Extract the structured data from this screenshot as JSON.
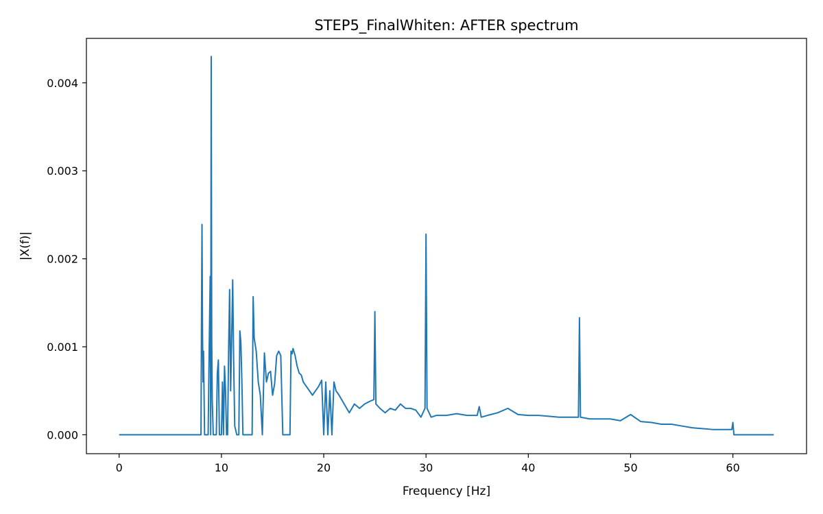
{
  "chart_data": {
    "type": "line",
    "title": "STEP5_FinalWhiten: AFTER spectrum",
    "xlabel": "Frequency [Hz]",
    "ylabel": "|X(f)|",
    "xlim": [
      -3.2,
      67.2
    ],
    "ylim": [
      -0.000215,
      0.004505
    ],
    "xticks": [
      0,
      10,
      20,
      30,
      40,
      50,
      60
    ],
    "xtick_labels": [
      "0",
      "10",
      "20",
      "30",
      "40",
      "50",
      "60"
    ],
    "yticks": [
      0.0,
      0.001,
      0.002,
      0.003,
      0.004
    ],
    "ytick_labels": [
      "0.000",
      "0.001",
      "0.002",
      "0.003",
      "0.004"
    ],
    "grid": false,
    "line_color": "#1f77b4",
    "series": [
      {
        "x": [
          0,
          8.0,
          8.05,
          8.1,
          8.15,
          8.2,
          8.25,
          8.35,
          8.45,
          8.7,
          8.8,
          8.9,
          8.95,
          9.0,
          9.05,
          9.1,
          9.2,
          9.5,
          9.6,
          9.7,
          9.8,
          9.9,
          10.0,
          10.1,
          10.2,
          10.3,
          10.4,
          10.5,
          10.6,
          10.7,
          10.8,
          10.9,
          11.0,
          11.1,
          11.2,
          11.3,
          11.5,
          11.7,
          11.8,
          11.9,
          12.0,
          12.1,
          12.2,
          12.5,
          13.0,
          13.1,
          13.2,
          13.4,
          13.6,
          13.8,
          14.0,
          14.2,
          14.4,
          14.6,
          14.8,
          15.0,
          15.2,
          15.4,
          15.6,
          15.8,
          16.0,
          16.3,
          16.7,
          16.8,
          16.9,
          17.0,
          17.2,
          17.4,
          17.6,
          17.8,
          18.0,
          18.3,
          18.6,
          18.9,
          19.2,
          19.5,
          19.8,
          20.0,
          20.2,
          20.4,
          20.6,
          20.8,
          21.0,
          21.2,
          21.5,
          22.0,
          22.5,
          23.0,
          23.5,
          24.0,
          24.5,
          24.9,
          25.0,
          25.1,
          25.5,
          26.0,
          26.5,
          27.0,
          27.5,
          28.0,
          28.5,
          29.0,
          29.5,
          29.9,
          30.0,
          30.1,
          30.5,
          31.0,
          32.0,
          33.0,
          34.0,
          35.0,
          35.2,
          35.4,
          36.0,
          37.0,
          38.0,
          39.0,
          40.0,
          41.0,
          42.0,
          43.0,
          44.0,
          44.9,
          45.0,
          45.1,
          46.0,
          47.0,
          48.0,
          49.0,
          50.0,
          51.0,
          52.0,
          53.0,
          54.0,
          55.0,
          56.0,
          57.0,
          58.0,
          59.0,
          59.9,
          60.0,
          60.1,
          64.0
        ],
        "y": [
          0.0,
          0.0,
          0.00128,
          0.00239,
          0.00115,
          0.0006,
          0.00095,
          0.0,
          0.0,
          0.0,
          0.00095,
          0.0018,
          0.0,
          0.0043,
          0.0011,
          0.0004,
          0.0,
          0.0,
          0.0007,
          0.00085,
          0.0,
          0.0,
          0.0,
          0.0006,
          0.0,
          0.00078,
          0.0005,
          0.0,
          0.0,
          0.00095,
          0.00165,
          0.0005,
          0.0011,
          0.00176,
          0.0008,
          0.0001,
          0.0,
          0.0,
          0.00118,
          0.00105,
          0.0006,
          0.0,
          0.0,
          0.0,
          0.0,
          0.00157,
          0.0011,
          0.00095,
          0.0006,
          0.00045,
          0.0,
          0.00093,
          0.0006,
          0.0007,
          0.00072,
          0.00045,
          0.00058,
          0.0009,
          0.00095,
          0.0009,
          0.0,
          0.0,
          0.0,
          0.00095,
          0.00092,
          0.00098,
          0.0009,
          0.00078,
          0.0007,
          0.00068,
          0.0006,
          0.00055,
          0.0005,
          0.00045,
          0.0005,
          0.00055,
          0.00062,
          0.0,
          0.0006,
          0.0,
          0.0005,
          0.0,
          0.0006,
          0.0005,
          0.00045,
          0.00035,
          0.00025,
          0.00035,
          0.0003,
          0.00035,
          0.00038,
          0.0004,
          0.0014,
          0.00035,
          0.0003,
          0.00025,
          0.0003,
          0.00028,
          0.00035,
          0.0003,
          0.0003,
          0.00028,
          0.0002,
          0.0003,
          0.00228,
          0.0003,
          0.0002,
          0.00022,
          0.00022,
          0.00024,
          0.00022,
          0.00022,
          0.00032,
          0.0002,
          0.00022,
          0.00025,
          0.0003,
          0.00023,
          0.00022,
          0.00022,
          0.00021,
          0.0002,
          0.0002,
          0.0002,
          0.00133,
          0.0002,
          0.00018,
          0.00018,
          0.00018,
          0.00016,
          0.00023,
          0.00015,
          0.00014,
          0.00012,
          0.00012,
          0.0001,
          8e-05,
          7e-05,
          6e-05,
          6e-05,
          6e-05,
          0.00014,
          0.0,
          0.0
        ]
      }
    ]
  }
}
